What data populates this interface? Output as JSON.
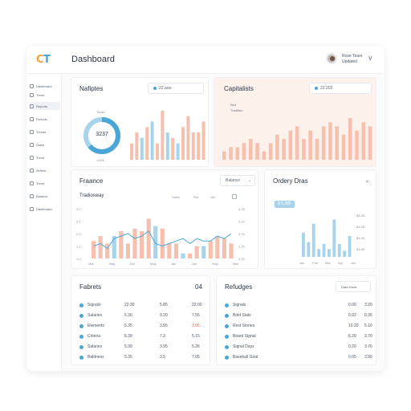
{
  "app": {
    "title": "Dashboard",
    "logo_left": "C",
    "logo_right": "T"
  },
  "user": {
    "name": "Rose Teare",
    "role": "Updated",
    "chevron": "∨"
  },
  "sidebar": {
    "items": [
      {
        "label": "Dashboard",
        "active": false
      },
      {
        "label": "Trend",
        "active": false
      },
      {
        "label": "Reports",
        "active": true
      },
      {
        "label": "Periods",
        "active": false
      },
      {
        "label": "Trends",
        "active": false
      },
      {
        "label": "Sales",
        "active": false
      },
      {
        "label": "Trend",
        "active": false
      },
      {
        "label": "Sellers",
        "active": false
      },
      {
        "label": "Trend",
        "active": false
      },
      {
        "label": "Balance",
        "active": false
      },
      {
        "label": "Dashboard",
        "active": false
      }
    ]
  },
  "analytics": {
    "title": "Nafiptes",
    "dropdown": "22.aoe",
    "donut_label": "Totals",
    "donut_value": "3237",
    "donut_sub": "1,000"
  },
  "capitals": {
    "title": "Capitalists",
    "dropdown": "22.202",
    "legend_a": "Bird",
    "legend_b": "Tradition"
  },
  "finance": {
    "title": "Fraance",
    "dropdown": "Balance",
    "subtitle": "Tradiosway",
    "controls": [
      "Sales",
      "Ret",
      "Val"
    ],
    "y_left": [
      "3.0",
      "2.5",
      "2.0",
      "1.5",
      "1.0"
    ],
    "y_right": [
      "3.25",
      "3.20",
      "2.75",
      "1.25",
      "1.20"
    ],
    "x_ticks": [
      "Mar",
      "May",
      "Jan",
      "May",
      "Jan",
      "Jan",
      "May",
      "Mar"
    ]
  },
  "orders": {
    "title": "Ordery Dras",
    "badge": "$ 5,380",
    "y_right": [
      "$3.48",
      "$3.48",
      "$3.48",
      "$3.48"
    ],
    "x_ticks": [
      "Jan",
      "Feb",
      "Mar",
      "Apr",
      "Jun"
    ]
  },
  "fabrics": {
    "title": "Fabrets",
    "code": "04",
    "rows": [
      {
        "name": "Signals",
        "a": "22.30",
        "b": "5.85",
        "c": "22.00",
        "c_red": false
      },
      {
        "name": "Salaries",
        "a": "5.30",
        "b": "9.20",
        "c": "7.55",
        "c_red": false
      },
      {
        "name": "Elements",
        "a": "5.35",
        "b": "3.55",
        "c": "3.95",
        "c_red": true
      },
      {
        "name": "Criteria",
        "a": "5.30",
        "b": "7.2",
        "c": "5.15",
        "c_red": false
      },
      {
        "name": "Salaries",
        "a": "5.30",
        "b": "3.95",
        "c": "5.26",
        "c_red": false
      },
      {
        "name": "Baldness",
        "a": "5.35",
        "b": "3.5",
        "c": "7.05",
        "c_red": false
      }
    ]
  },
  "ratings": {
    "title": "Refudges",
    "button": "Data Mode",
    "rows": [
      {
        "name": "Signals",
        "a": "0.00",
        "b": "3.20"
      },
      {
        "name": "Bold Stats",
        "a": "0.92",
        "b": "0.36"
      },
      {
        "name": "Rest Stories",
        "a": "10.20",
        "b": "5.10"
      },
      {
        "name": "Board Signal",
        "a": "6.20",
        "b": "3.70"
      },
      {
        "name": "Signal Days",
        "a": "0.20",
        "b": "3.76"
      },
      {
        "name": "Baseball Goal",
        "a": "0.05",
        "b": "3.90"
      }
    ]
  },
  "colors": {
    "blue": "#4aa6d6",
    "lightblue": "#a7d4ec",
    "peach": "#f6bfae",
    "peachbg": "#fdf1ec"
  },
  "chart_data": [
    {
      "type": "bar",
      "name": "analytics-bars",
      "values": [
        3,
        5,
        4,
        6,
        7,
        3,
        9,
        5,
        4,
        3,
        6,
        8,
        5,
        5,
        7
      ],
      "highlight": [
        2,
        4,
        7,
        9
      ]
    },
    {
      "type": "bar",
      "name": "capitals-bars",
      "values": [
        2,
        3,
        3,
        4,
        5,
        4,
        2,
        4,
        6,
        5,
        7,
        8,
        5,
        7,
        5,
        8,
        9,
        8,
        6,
        10,
        7,
        9,
        8
      ]
    },
    {
      "type": "bar",
      "name": "finance-bars",
      "values": [
        1.7,
        1.9,
        1.6,
        1.9,
        2.1,
        1.6,
        2.2,
        2.1,
        2.6,
        2.3,
        2.2,
        1.6,
        1.6,
        1.2,
        1.2,
        1.5,
        1.5,
        1.7,
        1.9,
        1.8,
        1.6
      ],
      "highlight": [
        3,
        9,
        13,
        16
      ]
    },
    {
      "type": "line",
      "name": "finance-line",
      "values": [
        1.5,
        1.6,
        1.4,
        1.8,
        1.9,
        2.0,
        1.8,
        1.9,
        2.1,
        1.6,
        1.5,
        1.6,
        1.7,
        1.8,
        1.6,
        1.8,
        1.7,
        1.7,
        1.9,
        1.8,
        2.0
      ]
    },
    {
      "type": "bar",
      "name": "orders-bars",
      "values": [
        2.8,
        1.7,
        3.8,
        0.9,
        1.5,
        0.9,
        4.3,
        1.5,
        0.7,
        2.4
      ]
    }
  ]
}
